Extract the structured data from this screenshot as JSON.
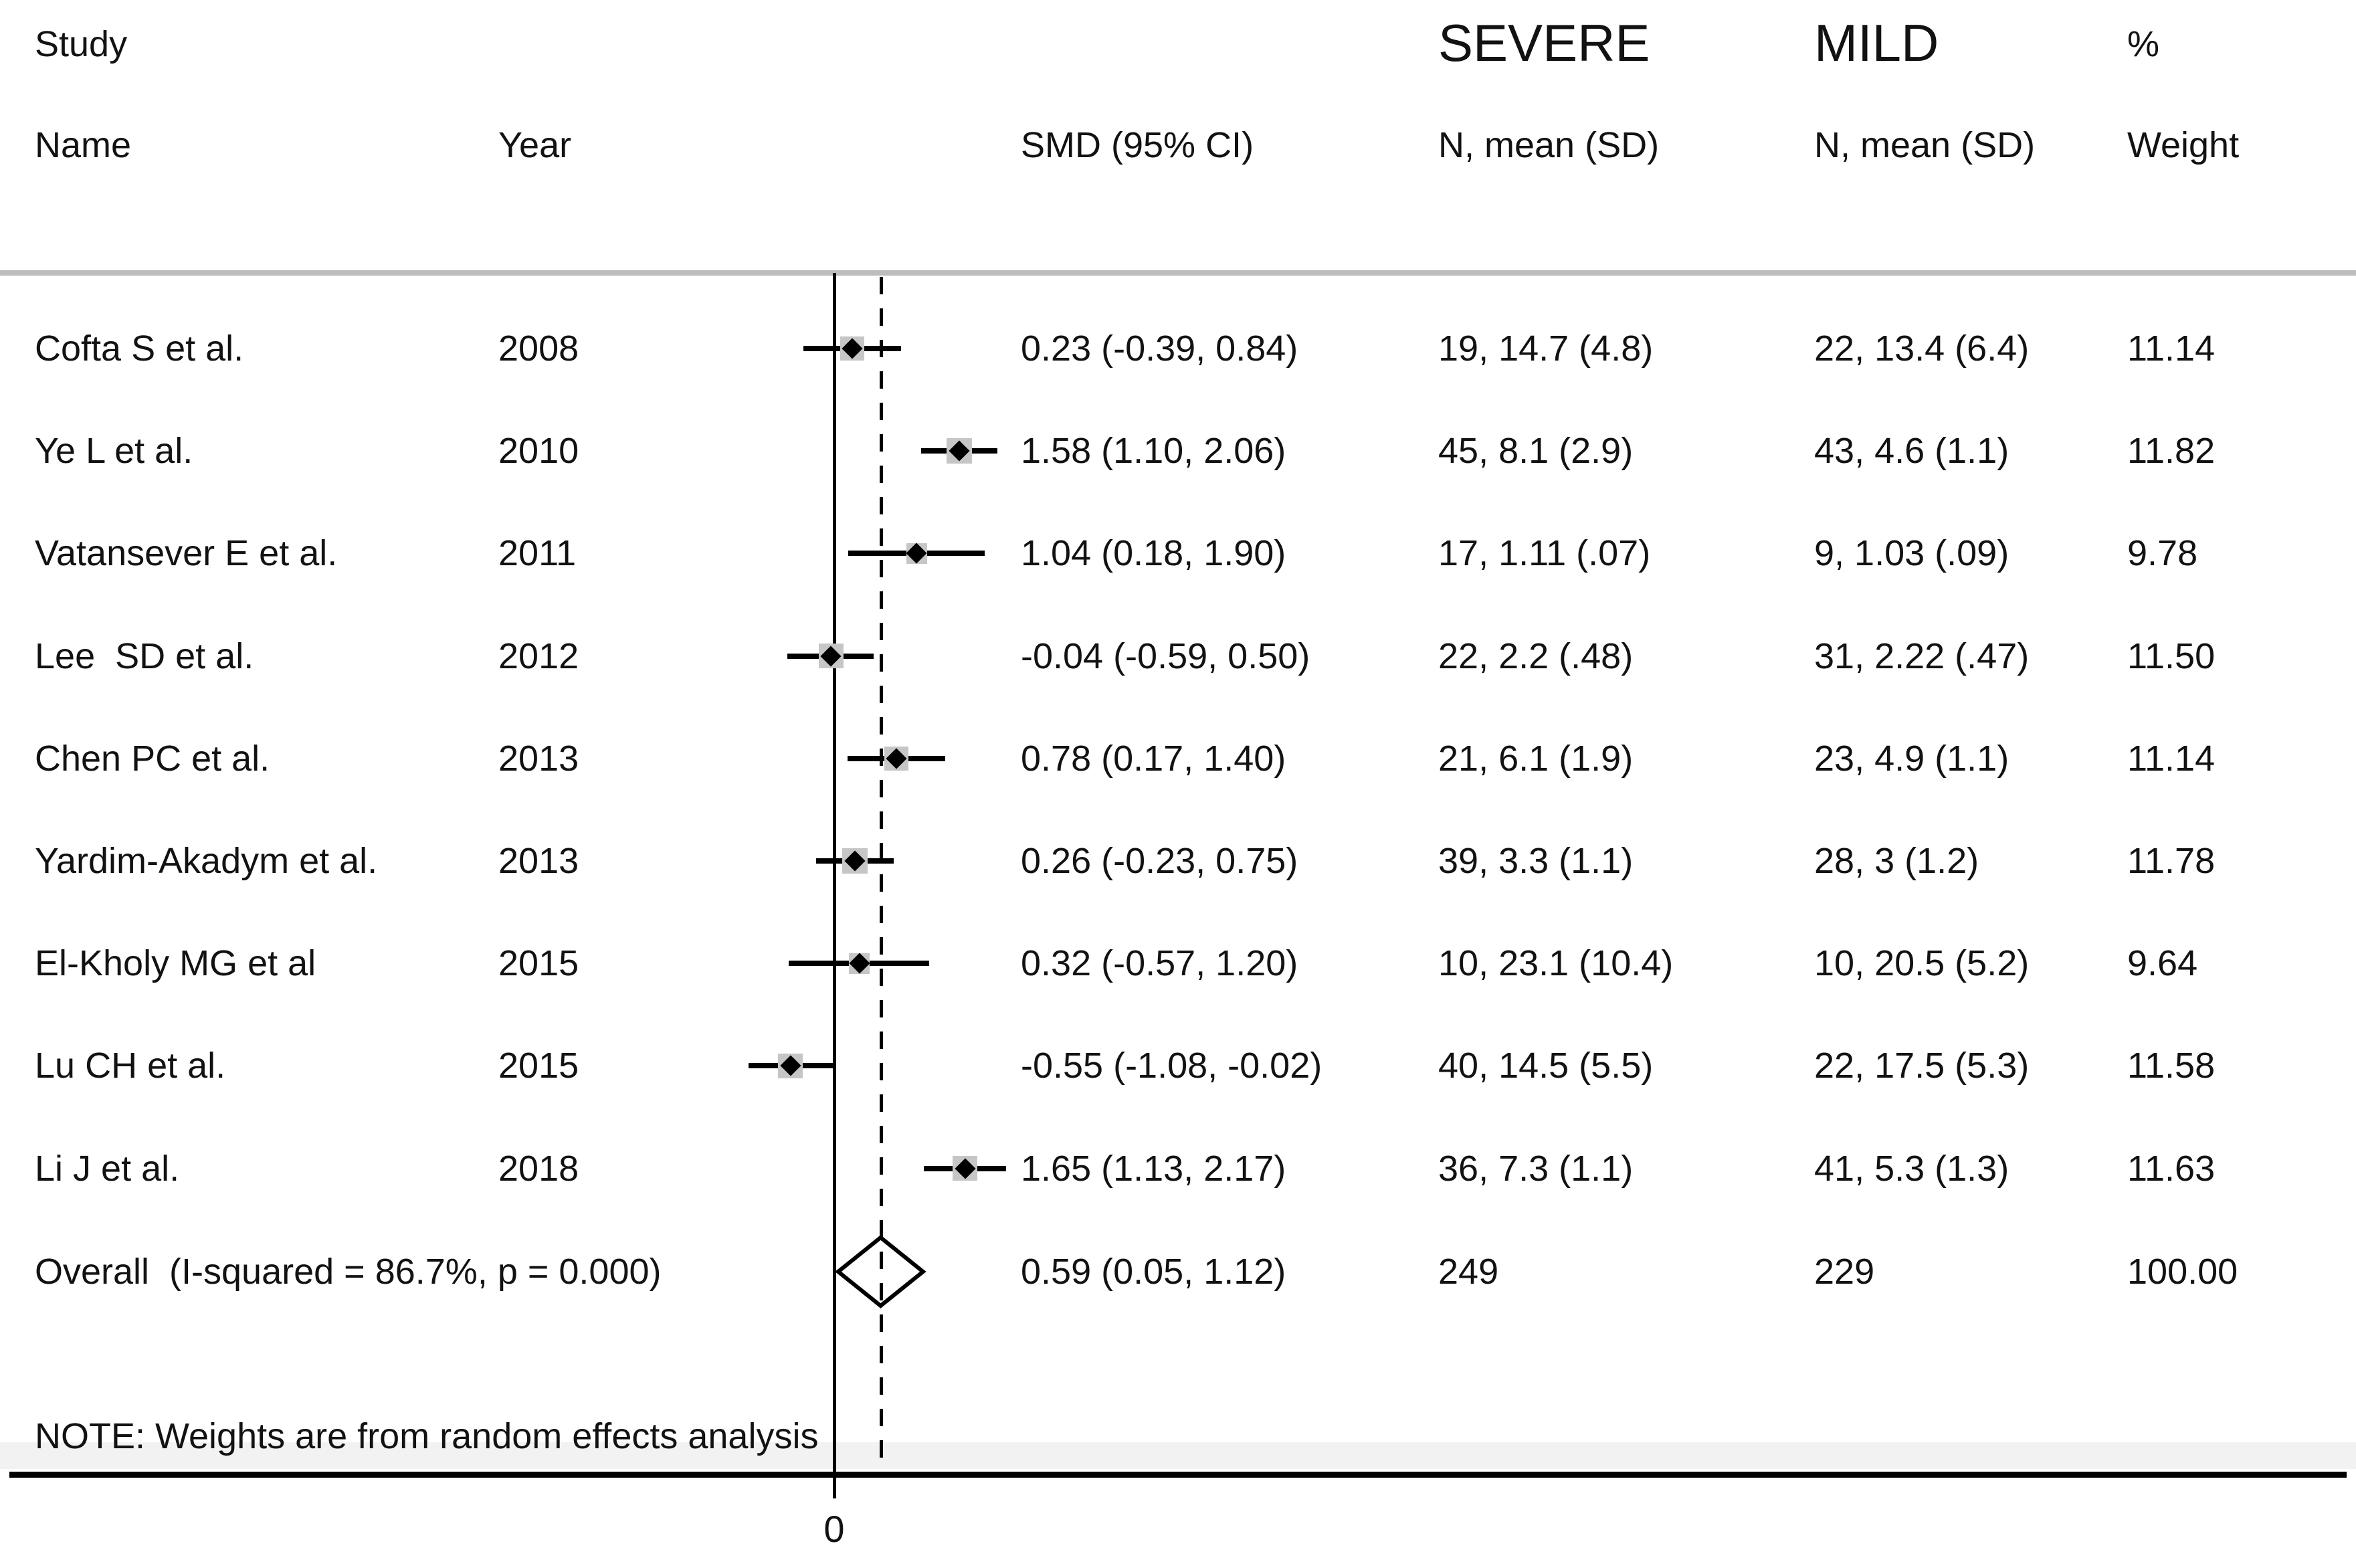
{
  "figure": {
    "header": {
      "study": "Study",
      "name": "Name",
      "year": "Year",
      "smd_ci": "SMD (95% CI)",
      "severe_group": "SEVERE",
      "mild_group": "MILD",
      "percent": "%",
      "severe_cols": "N, mean (SD)",
      "mild_cols": "N, mean (SD)",
      "weight": "Weight"
    },
    "note": "NOTE: Weights are from random effects analysis",
    "axis_tick_label": "0"
  },
  "colors": {
    "text": "#121212",
    "line": "#000000",
    "separator": "#bdbdbd",
    "weight_box": "#c6c6c6",
    "background": "#ffffff"
  },
  "chart_data": {
    "type": "scatter",
    "subtype": "forest-plot-meta-analysis",
    "effect_measure": "SMD",
    "null_line_x": 0,
    "overall_dashed_line_x": 0.59,
    "x_tick_labels": [
      "0"
    ],
    "legend_position": "none",
    "grid": false,
    "studies": [
      {
        "name": "Cofta S et al.",
        "year": "2008",
        "smd": 0.23,
        "ci_low": -0.39,
        "ci_high": 0.84,
        "smd_text": "0.23 (-0.39, 0.84)",
        "severe": "19, 14.7 (4.8)",
        "mild": "22, 13.4 (6.4)",
        "weight": 11.14,
        "weight_text": "11.14"
      },
      {
        "name": "Ye L et al.",
        "year": "2010",
        "smd": 1.58,
        "ci_low": 1.1,
        "ci_high": 2.06,
        "smd_text": "1.58 (1.10, 2.06)",
        "severe": "45, 8.1 (2.9)",
        "mild": "43, 4.6 (1.1)",
        "weight": 11.82,
        "weight_text": "11.82"
      },
      {
        "name": "Vatansever E et al.",
        "year": "2011",
        "smd": 1.04,
        "ci_low": 0.18,
        "ci_high": 1.9,
        "smd_text": "1.04 (0.18, 1.90)",
        "severe": "17, 1.11 (.07)",
        "mild": "9, 1.03 (.09)",
        "weight": 9.78,
        "weight_text": "9.78"
      },
      {
        "name": "Lee  SD et al.",
        "year": "2012",
        "smd": -0.04,
        "ci_low": -0.59,
        "ci_high": 0.5,
        "smd_text": "-0.04 (-0.59, 0.50)",
        "severe": "22, 2.2 (.48)",
        "mild": "31, 2.22 (.47)",
        "weight": 11.5,
        "weight_text": "11.50"
      },
      {
        "name": "Chen PC et al.",
        "year": "2013",
        "smd": 0.78,
        "ci_low": 0.17,
        "ci_high": 1.4,
        "smd_text": "0.78 (0.17, 1.40)",
        "severe": "21, 6.1 (1.9)",
        "mild": "23, 4.9 (1.1)",
        "weight": 11.14,
        "weight_text": "11.14"
      },
      {
        "name": "Yardim-Akadym et al.",
        "year": "2013",
        "smd": 0.26,
        "ci_low": -0.23,
        "ci_high": 0.75,
        "smd_text": "0.26 (-0.23, 0.75)",
        "severe": "39, 3.3 (1.1)",
        "mild": "28, 3 (1.2)",
        "weight": 11.78,
        "weight_text": "11.78"
      },
      {
        "name": "El-Kholy MG et al",
        "year": "2015",
        "smd": 0.32,
        "ci_low": -0.57,
        "ci_high": 1.2,
        "smd_text": "0.32 (-0.57, 1.20)",
        "severe": "10, 23.1 (10.4)",
        "mild": "10, 20.5 (5.2)",
        "weight": 9.64,
        "weight_text": "9.64"
      },
      {
        "name": "Lu CH et al.",
        "year": "2015",
        "smd": -0.55,
        "ci_low": -1.08,
        "ci_high": -0.02,
        "smd_text": "-0.55 (-1.08, -0.02)",
        "severe": "40, 14.5 (5.5)",
        "mild": "22, 17.5 (5.3)",
        "weight": 11.58,
        "weight_text": "11.58"
      },
      {
        "name": "Li J et al.",
        "year": "2018",
        "smd": 1.65,
        "ci_low": 1.13,
        "ci_high": 2.17,
        "smd_text": "1.65 (1.13, 2.17)",
        "severe": "36, 7.3 (1.1)",
        "mild": "41, 5.3 (1.3)",
        "weight": 11.63,
        "weight_text": "11.63"
      }
    ],
    "overall": {
      "label": "Overall  (I-squared = 86.7%, p = 0.000)",
      "smd": 0.59,
      "ci_low": 0.05,
      "ci_high": 1.12,
      "smd_text": "0.59 (0.05, 1.12)",
      "severe": "249",
      "mild": "229",
      "weight_text": "100.00"
    }
  }
}
